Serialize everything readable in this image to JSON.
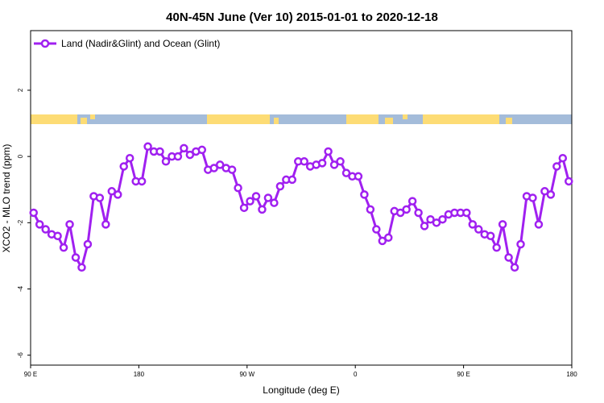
{
  "chart_data": {
    "type": "line",
    "title": "40N-45N June (Ver 10)   2015-01-01 to 2020-12-18",
    "x_label": "Longitude (deg E)",
    "y_label": "XCO2 - MLO trend (ppm)",
    "legend_position": "top-left",
    "xlim": [
      90,
      540
    ],
    "xticks": [
      {
        "value": 90,
        "label": "90 E"
      },
      {
        "value": 180,
        "label": "180"
      },
      {
        "value": 270,
        "label": "90 W"
      },
      {
        "value": 360,
        "label": "0"
      },
      {
        "value": 450,
        "label": "90 E"
      },
      {
        "value": 540,
        "label": "180"
      }
    ],
    "ylim": [
      -6.3,
      3.8
    ],
    "yticks": [
      -6,
      -4,
      -2,
      0,
      2
    ],
    "x": [
      92.5,
      97.5,
      102.5,
      107.5,
      112.5,
      117.5,
      122.5,
      127.5,
      132.5,
      137.5,
      142.5,
      147.5,
      152.5,
      157.5,
      162.5,
      167.5,
      172.5,
      177.5,
      182.5,
      187.5,
      192.5,
      197.5,
      202.5,
      207.5,
      212.5,
      217.5,
      222.5,
      227.5,
      232.5,
      237.5,
      242.5,
      247.5,
      252.5,
      257.5,
      262.5,
      267.5,
      272.5,
      277.5,
      282.5,
      287.5,
      292.5,
      297.5,
      302.5,
      307.5,
      312.5,
      317.5,
      322.5,
      327.5,
      332.5,
      337.5,
      342.5,
      347.5,
      352.5,
      357.5,
      362.5,
      367.5,
      372.5,
      377.5,
      382.5,
      387.5,
      392.5,
      397.5,
      402.5,
      407.5,
      412.5,
      417.5,
      422.5,
      427.5,
      432.5,
      437.5,
      442.5,
      447.5,
      452.5,
      457.5,
      462.5,
      467.5,
      472.5,
      477.5,
      482.5,
      487.5,
      492.5,
      497.5,
      502.5,
      507.5,
      512.5,
      517.5,
      522.5,
      527.5,
      532.5,
      537.5
    ],
    "series": [
      {
        "name": "Land (Nadir&Glint) and Ocean (Glint)",
        "color": "#a020f0",
        "values": [
          -1.7,
          -2.05,
          -2.2,
          -2.35,
          -2.4,
          -2.75,
          -2.05,
          -3.05,
          -3.35,
          -2.65,
          -1.2,
          -1.25,
          -2.05,
          -1.05,
          -1.15,
          -0.3,
          -0.05,
          -0.75,
          -0.75,
          0.3,
          0.15,
          0.15,
          -0.15,
          0.0,
          0.0,
          0.25,
          0.05,
          0.15,
          0.2,
          -0.4,
          -0.35,
          -0.25,
          -0.35,
          -0.4,
          -0.95,
          -1.55,
          -1.35,
          -1.2,
          -1.6,
          -1.25,
          -1.4,
          -0.9,
          -0.7,
          -0.7,
          -0.15,
          -0.15,
          -0.3,
          -0.25,
          -0.2,
          0.15,
          -0.25,
          -0.15,
          -0.5,
          -0.6,
          -0.6,
          -1.15,
          -1.6,
          -2.2,
          -2.55,
          -2.45,
          -1.65,
          -1.7,
          -1.6,
          -1.35,
          -1.7,
          -2.1,
          -1.9,
          -2.0,
          -1.9,
          -1.75,
          -1.7,
          -1.7,
          -1.7,
          -2.05,
          -2.2,
          -2.35,
          -2.4,
          -2.75,
          -2.05,
          -3.05,
          -3.35,
          -2.65,
          -1.2,
          -1.25,
          -2.05,
          -1.05,
          -1.15,
          -0.3,
          -0.05,
          -0.75
        ]
      }
    ]
  }
}
